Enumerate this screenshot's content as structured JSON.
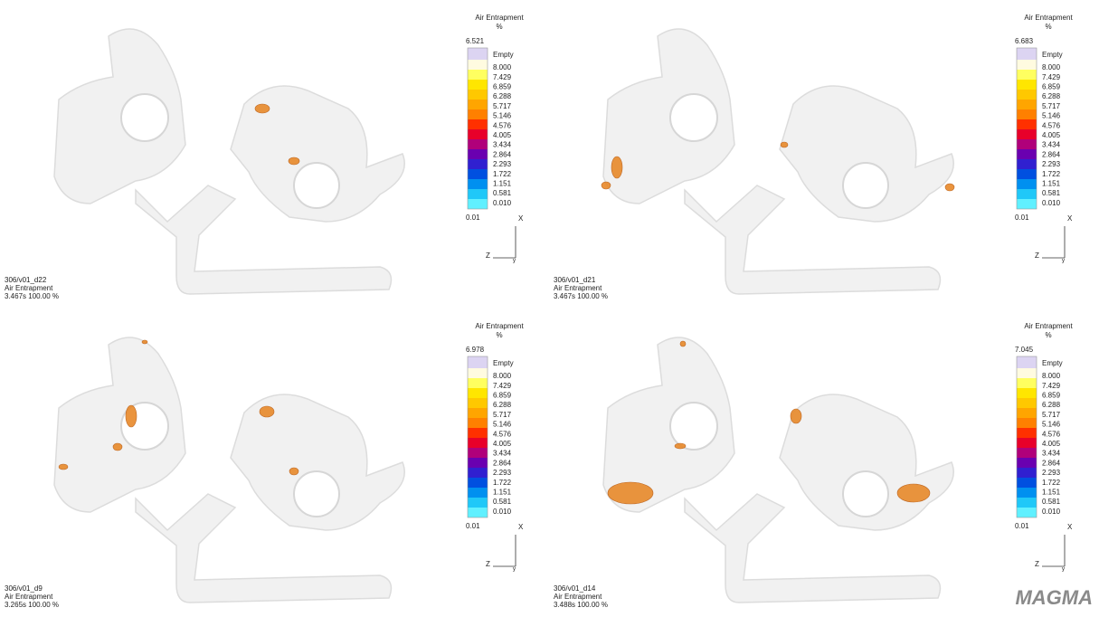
{
  "panels": [
    {
      "legend": {
        "title": "Air Entrapment",
        "unit": "%",
        "max": "6.521",
        "empty": "Empty",
        "levels": [
          "8.000",
          "7.429",
          "6.859",
          "6.288",
          "5.717",
          "5.146",
          "4.576",
          "4.005",
          "3.434",
          "2.864",
          "2.293",
          "1.722",
          "1.151",
          "0.581",
          "0.010"
        ],
        "min": "0.01"
      },
      "axes": {
        "x": "X",
        "z": "Z",
        "y": "y"
      },
      "caption": [
        "306/v01_d22",
        "Air Entrapment",
        "3.467s 100.00 %"
      ]
    },
    {
      "legend": {
        "title": "Air Entrapment",
        "unit": "%",
        "max": "6.683",
        "empty": "Empty",
        "levels": [
          "8.000",
          "7.429",
          "6.859",
          "6.288",
          "5.717",
          "5.146",
          "4.576",
          "4.005",
          "3.434",
          "2.864",
          "2.293",
          "1.722",
          "1.151",
          "0.581",
          "0.010"
        ],
        "min": "0.01"
      },
      "axes": {
        "x": "X",
        "z": "Z",
        "y": "y"
      },
      "caption": [
        "306/v01_d21",
        "Air Entrapment",
        "3.467s 100.00 %"
      ]
    },
    {
      "legend": {
        "title": "Air Entrapment",
        "unit": "%",
        "max": "6.978",
        "empty": "Empty",
        "levels": [
          "8.000",
          "7.429",
          "6.859",
          "6.288",
          "5.717",
          "5.146",
          "4.576",
          "4.005",
          "3.434",
          "2.864",
          "2.293",
          "1.722",
          "1.151",
          "0.581",
          "0.010"
        ],
        "min": "0.01"
      },
      "axes": {
        "x": "X",
        "z": "Z",
        "y": "y"
      },
      "caption": [
        "306/v01_d9",
        "Air Entrapment",
        "3.265s 100.00 %"
      ]
    },
    {
      "legend": {
        "title": "Air Entrapment",
        "unit": "%",
        "max": "7.045",
        "empty": "Empty",
        "levels": [
          "8.000",
          "7.429",
          "6.859",
          "6.288",
          "5.717",
          "5.146",
          "4.576",
          "4.005",
          "3.434",
          "2.864",
          "2.293",
          "1.722",
          "1.151",
          "0.581",
          "0.010"
        ],
        "min": "0.01"
      },
      "axes": {
        "x": "X",
        "z": "Z",
        "y": "y"
      },
      "caption": [
        "306/v01_d14",
        "Air Entrapment",
        "3.488s 100.00 %"
      ]
    }
  ],
  "logo": "MAGMA"
}
